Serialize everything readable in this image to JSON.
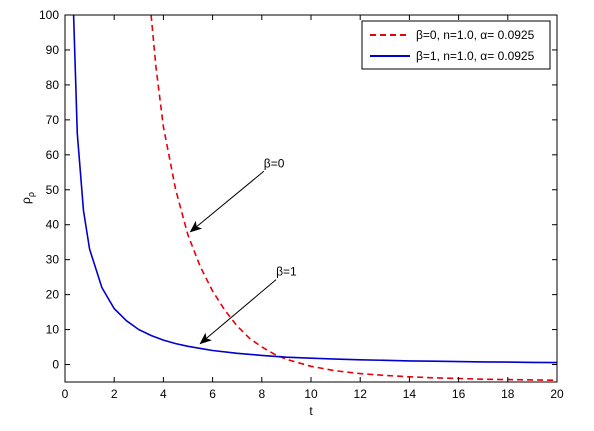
{
  "chart_data": {
    "type": "line",
    "xlabel": "t",
    "ylabel": "ρ",
    "ylabel_sub": "ρ",
    "xlim": [
      0,
      20
    ],
    "ylim": [
      -5,
      100
    ],
    "xticks": [
      0,
      2,
      4,
      6,
      8,
      10,
      12,
      14,
      16,
      18,
      20
    ],
    "yticks": [
      0,
      10,
      20,
      30,
      40,
      50,
      60,
      70,
      80,
      90,
      100
    ],
    "grid": false,
    "legend_position": "top-right",
    "series": [
      {
        "name": "β=0, n=1.0, α= 0.0925",
        "color": "#e8000b",
        "style": "dashed",
        "x": [
          3.5,
          3.7,
          4.0,
          4.5,
          5.0,
          5.5,
          6.0,
          6.5,
          7.0,
          7.5,
          8.0,
          8.5,
          9.0,
          9.5,
          10.0,
          11.0,
          12.0,
          13.0,
          14.0,
          15.0,
          16.0,
          17.0,
          18.0,
          19.0,
          20.0
        ],
        "y": [
          100,
          85,
          68,
          50,
          37,
          28,
          21,
          15.5,
          11,
          7.5,
          5,
          3,
          1.5,
          0.5,
          -0.5,
          -1.8,
          -2.6,
          -3.1,
          -3.5,
          -3.8,
          -4.0,
          -4.2,
          -4.3,
          -4.4,
          -4.5
        ]
      },
      {
        "name": "β=1, n=1.0, α= 0.0925",
        "color": "#0000cc",
        "style": "solid",
        "x": [
          0.35,
          0.5,
          0.75,
          1.0,
          1.5,
          2.0,
          2.5,
          3.0,
          3.5,
          4.0,
          4.5,
          5.0,
          5.5,
          6.0,
          7.0,
          8.0,
          9.0,
          10.0,
          11.0,
          12.0,
          13.0,
          14.0,
          15.0,
          16.0,
          17.0,
          18.0,
          19.0,
          20.0
        ],
        "y": [
          100,
          66,
          44,
          33,
          22,
          16,
          12.5,
          10,
          8.3,
          7,
          6,
          5.2,
          4.6,
          4,
          3.2,
          2.6,
          2.1,
          1.8,
          1.55,
          1.35,
          1.2,
          1.05,
          0.95,
          0.85,
          0.75,
          0.68,
          0.62,
          0.55
        ]
      }
    ],
    "annotations": [
      {
        "text": "β=0",
        "label_at": [
          8.0,
          57
        ],
        "arrow_tip": [
          5.1,
          38
        ]
      },
      {
        "text": "β=1",
        "label_at": [
          8.5,
          26
        ],
        "arrow_tip": [
          5.5,
          6
        ]
      }
    ]
  }
}
